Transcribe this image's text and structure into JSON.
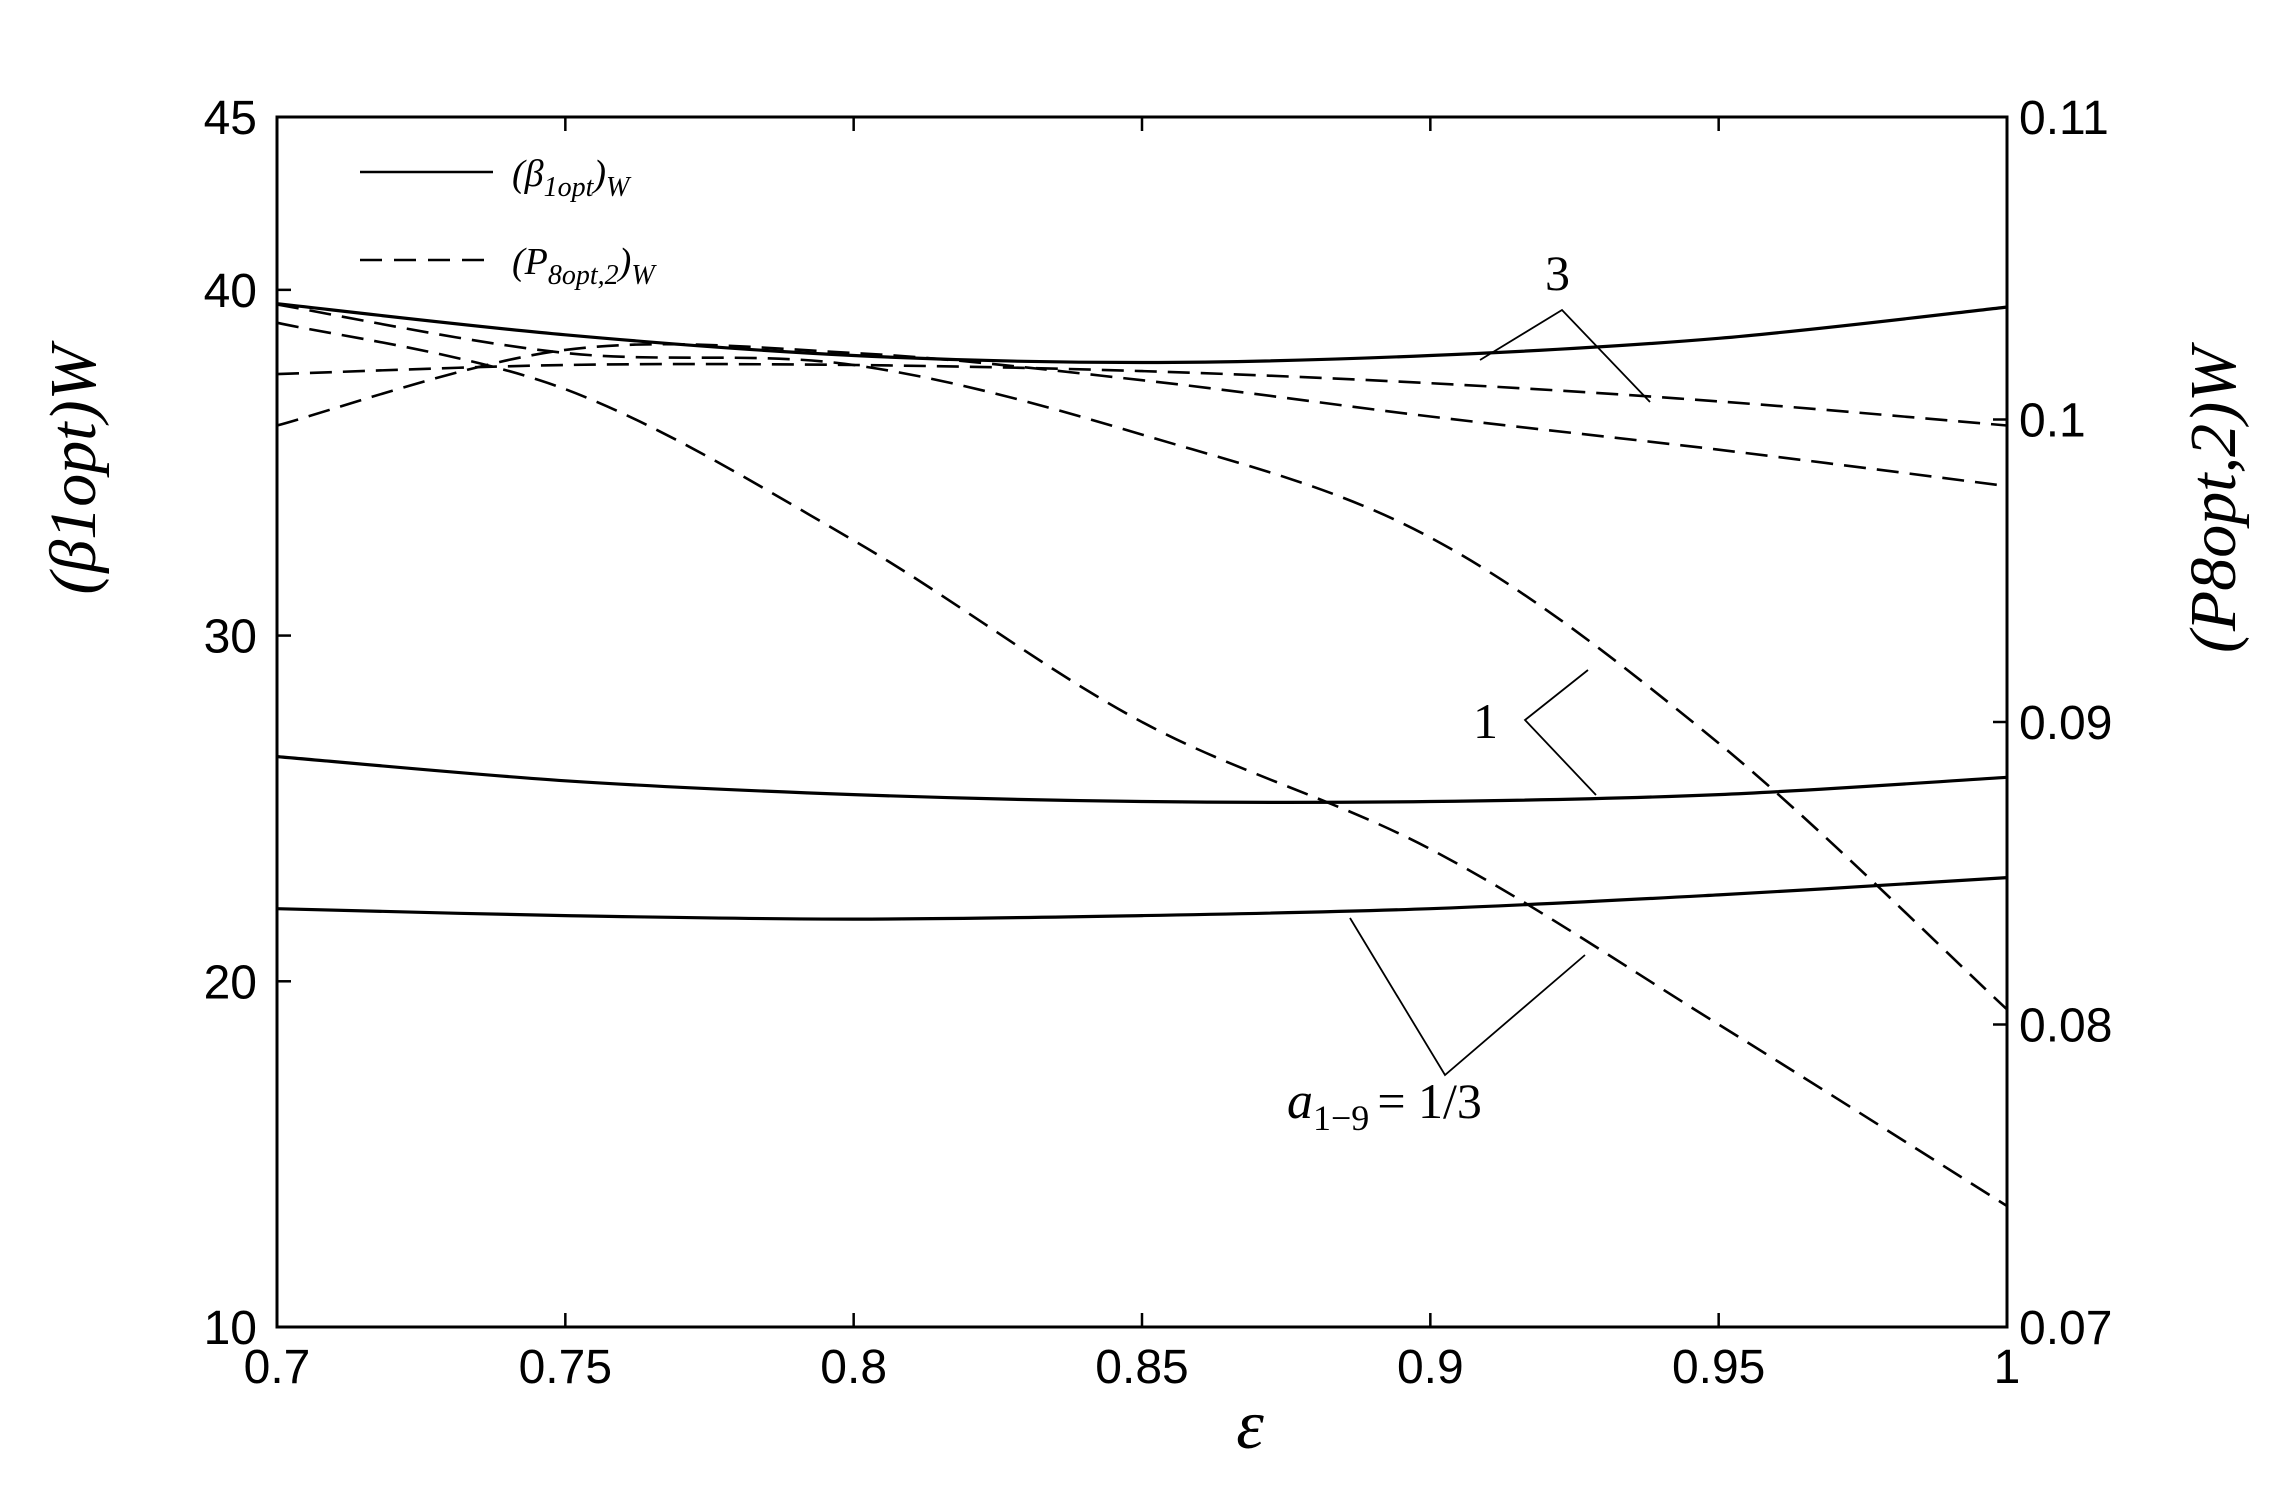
{
  "chart_data": {
    "type": "line",
    "xlabel": "ε",
    "ylabel_left": "(β1opt)W",
    "ylabel_right": "(P8opt,2)W",
    "xlim": [
      0.7,
      1.0
    ],
    "ylim_left": [
      10,
      45
    ],
    "ylim_right": [
      0.07,
      0.11
    ],
    "x_ticks": [
      "0.7",
      "0.75",
      "0.8",
      "0.85",
      "0.9",
      "0.95",
      "1"
    ],
    "y_left_ticks": [
      "10",
      "20",
      "30",
      "40",
      "45"
    ],
    "y_right_ticks": [
      "0.07",
      "0.08",
      "0.09",
      "0.1",
      "0.11"
    ],
    "grid": false,
    "legend": {
      "placement": "top-left",
      "entries": [
        {
          "label_main": "(β",
          "label_sub": "1opt",
          "label_close": ")",
          "label_sub2": "W",
          "style": "solid"
        },
        {
          "label_main": "(P",
          "label_sub": "8opt,2",
          "label_close": ")",
          "label_sub2": "W",
          "style": "dashed"
        }
      ]
    },
    "annotations": {
      "curve_3": "3",
      "curve_1": "1",
      "a_label_main": "a",
      "a_label_sub": "1−9",
      "a_label_eq": "= 1/3"
    },
    "series": [
      {
        "axis": "left",
        "style": "solid",
        "group": "3",
        "x": [
          0.7,
          0.75,
          0.8,
          0.85,
          0.9,
          0.95,
          1.0
        ],
        "y": [
          39.6,
          38.7,
          38.1,
          37.9,
          38.1,
          38.6,
          39.5
        ]
      },
      {
        "axis": "left",
        "style": "solid",
        "group": "1",
        "x": [
          0.7,
          0.75,
          0.8,
          0.85,
          0.9,
          0.95,
          1.0
        ],
        "y": [
          26.5,
          25.8,
          25.4,
          25.2,
          25.2,
          25.4,
          25.9
        ]
      },
      {
        "axis": "left",
        "style": "solid",
        "group": "1/3",
        "x": [
          0.7,
          0.75,
          0.8,
          0.85,
          0.9,
          0.95,
          1.0
        ],
        "y": [
          22.1,
          21.9,
          21.8,
          21.9,
          22.1,
          22.5,
          23.0
        ]
      },
      {
        "axis": "right",
        "style": "dashed",
        "group": "3",
        "x": [
          0.7,
          0.75,
          0.8,
          0.85,
          0.9,
          0.95,
          1.0
        ],
        "y": [
          0.1015,
          0.1018,
          0.1018,
          0.1016,
          0.1012,
          0.1006,
          0.0998
        ]
      },
      {
        "axis": "right",
        "style": "dashed",
        "group": "3",
        "x": [
          0.7,
          0.75,
          0.8,
          0.85,
          0.9,
          0.95,
          1.0
        ],
        "y": [
          0.0998,
          0.1023,
          0.1022,
          0.1013,
          0.1001,
          0.099,
          0.0978
        ]
      },
      {
        "axis": "right",
        "style": "dashed",
        "group": "1",
        "x": [
          0.7,
          0.75,
          0.8,
          0.85,
          0.9,
          0.95,
          1.0
        ],
        "y": [
          0.1038,
          0.1022,
          0.1018,
          0.0995,
          0.0961,
          0.0893,
          0.0805
        ]
      },
      {
        "axis": "right",
        "style": "dashed",
        "group": "1/3",
        "x": [
          0.7,
          0.75,
          0.8,
          0.85,
          0.9,
          0.95,
          1.0
        ],
        "y": [
          0.1032,
          0.101,
          0.096,
          0.09,
          0.0858,
          0.08,
          0.074
        ]
      }
    ]
  }
}
